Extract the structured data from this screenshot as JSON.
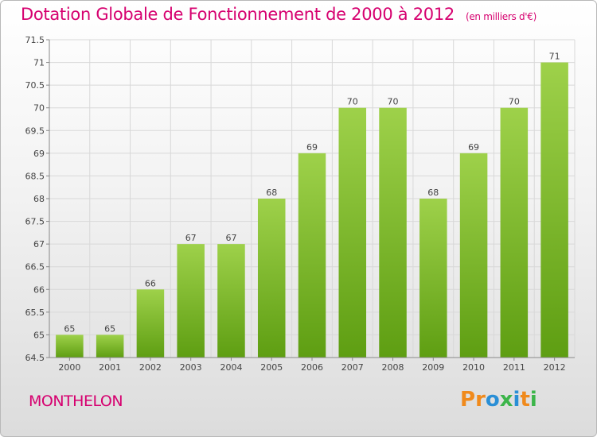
{
  "header": {
    "title": "Dotation Globale de Fonctionnement de 2000 à 2012",
    "subtitle": "(en milliers d'€)"
  },
  "footer": {
    "commune": "MONTHELON",
    "brand": "Proxiti",
    "brand_letters": [
      "P",
      "r",
      "o",
      "x",
      "i",
      "t",
      "i"
    ],
    "brand_colors": [
      "#f08a1c",
      "#f08a1c",
      "#2a8fd6",
      "#3cb54a",
      "#2a8fd6",
      "#f08a1c",
      "#3cb54a"
    ]
  },
  "colors": {
    "accent": "#d6006f",
    "bar_top": "#9ed14a",
    "bar_bottom": "#5e9e12"
  },
  "chart_data": {
    "type": "bar",
    "title": "Dotation Globale de Fonctionnement de 2000 à 2012",
    "subtitle": "(en milliers d'€)",
    "categories": [
      "2000",
      "2001",
      "2002",
      "2003",
      "2004",
      "2005",
      "2006",
      "2007",
      "2008",
      "2009",
      "2010",
      "2011",
      "2012"
    ],
    "values": [
      65,
      65,
      66,
      67,
      67,
      68,
      69,
      70,
      70,
      68,
      69,
      70,
      71
    ],
    "data_labels": [
      "65",
      "65",
      "66",
      "67",
      "67",
      "68",
      "69",
      "70",
      "70",
      "68",
      "69",
      "70",
      "71"
    ],
    "ylim": [
      64.5,
      71.5
    ],
    "yticks": [
      64.5,
      65,
      65.5,
      66,
      66.5,
      67,
      67.5,
      68,
      68.5,
      69,
      69.5,
      70,
      70.5,
      71,
      71.5
    ],
    "ytick_labels": [
      "64.5",
      "65",
      "65.5",
      "66",
      "66.5",
      "67",
      "67.5",
      "68",
      "68.5",
      "69",
      "69.5",
      "70",
      "70.5",
      "71",
      "71.5"
    ],
    "grid": true,
    "xlabel": "",
    "ylabel": ""
  }
}
